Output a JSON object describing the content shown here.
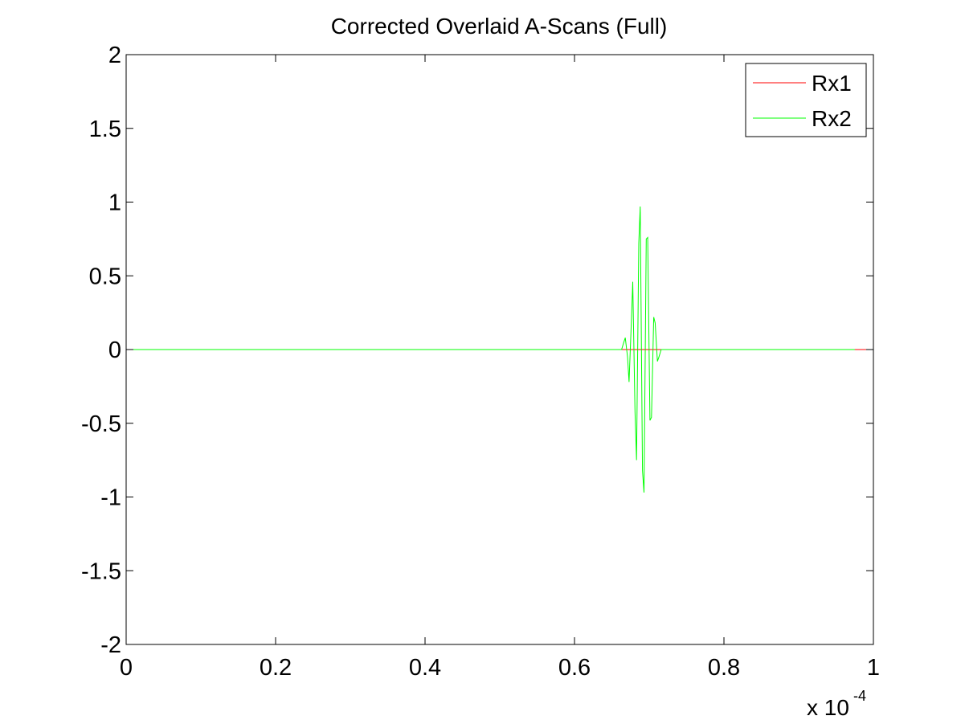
{
  "chart_data": {
    "type": "line",
    "title": "Corrected Overlaid A-Scans (Full)",
    "xlabel": "",
    "ylabel": "",
    "xlim": [
      0,
      1
    ],
    "ylim": [
      -2,
      2
    ],
    "x_tick_labels": [
      "0",
      "0.2",
      "0.4",
      "0.6",
      "0.8",
      "1"
    ],
    "x_tick_values": [
      0,
      0.2,
      0.4,
      0.6,
      0.8,
      1.0
    ],
    "y_tick_labels": [
      "2",
      "1.5",
      "1",
      "0.5",
      "0",
      "-0.5",
      "-1",
      "-1.5",
      "-2"
    ],
    "y_tick_values": [
      2,
      1.5,
      1,
      0.5,
      0,
      -0.5,
      -1,
      -1.5,
      -2
    ],
    "x_exponent": {
      "base": "x 10",
      "power": "-4"
    },
    "grid": false,
    "legend_position": "top-right",
    "series": [
      {
        "name": "Rx1",
        "color": "#ff0000",
        "x": [
          0,
          0.975,
          1.0
        ],
        "y": [
          0,
          0,
          0
        ]
      },
      {
        "name": "Rx2",
        "color": "#00ff00",
        "x": [
          0,
          0.663,
          0.666,
          0.668,
          0.671,
          0.673,
          0.676,
          0.678,
          0.681,
          0.683,
          0.686,
          0.688,
          0.691,
          0.693,
          0.696,
          0.698,
          0.701,
          0.703,
          0.706,
          0.708,
          0.711,
          0.713,
          0.716,
          0.975
        ],
        "y": [
          0,
          0.0,
          0.05,
          0.08,
          -0.05,
          -0.22,
          0.18,
          0.46,
          -0.42,
          -0.75,
          0.72,
          0.97,
          -0.82,
          -0.97,
          0.75,
          0.76,
          -0.48,
          -0.46,
          0.22,
          0.18,
          -0.08,
          -0.05,
          0.0,
          0
        ]
      }
    ]
  }
}
